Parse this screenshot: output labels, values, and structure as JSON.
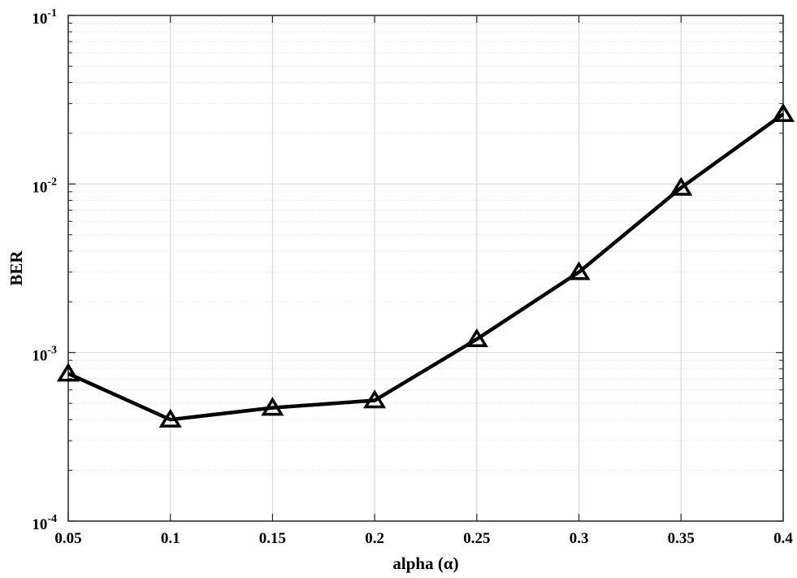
{
  "chart_data": {
    "type": "line",
    "title": "",
    "xlabel": "alpha (α)",
    "ylabel": "BER",
    "xlim": [
      0.05,
      0.4
    ],
    "ylim": [
      0.0001,
      0.1
    ],
    "yscale": "log",
    "grid": true,
    "legend": "none",
    "x_ticks": [
      "0.05",
      "0.1",
      "0.15",
      "0.2",
      "0.25",
      "0.3",
      "0.35",
      "0.4"
    ],
    "x_tick_values": [
      0.05,
      0.1,
      0.15,
      0.2,
      0.25,
      0.3,
      0.35,
      0.4
    ],
    "y_ticks": [
      {
        "value": 0.0001,
        "base": "10",
        "exp": "-4"
      },
      {
        "value": 0.001,
        "base": "10",
        "exp": "-3"
      },
      {
        "value": 0.01,
        "base": "10",
        "exp": "-2"
      },
      {
        "value": 0.1,
        "base": "10",
        "exp": "-1"
      }
    ],
    "series": [
      {
        "marker": "triangle",
        "color": "#000000",
        "x": [
          0.05,
          0.1,
          0.15,
          0.2,
          0.25,
          0.3,
          0.35,
          0.4
        ],
        "values": [
          0.00075,
          0.0004,
          0.00047,
          0.00052,
          0.0012,
          0.003,
          0.0095,
          0.026
        ]
      }
    ]
  }
}
